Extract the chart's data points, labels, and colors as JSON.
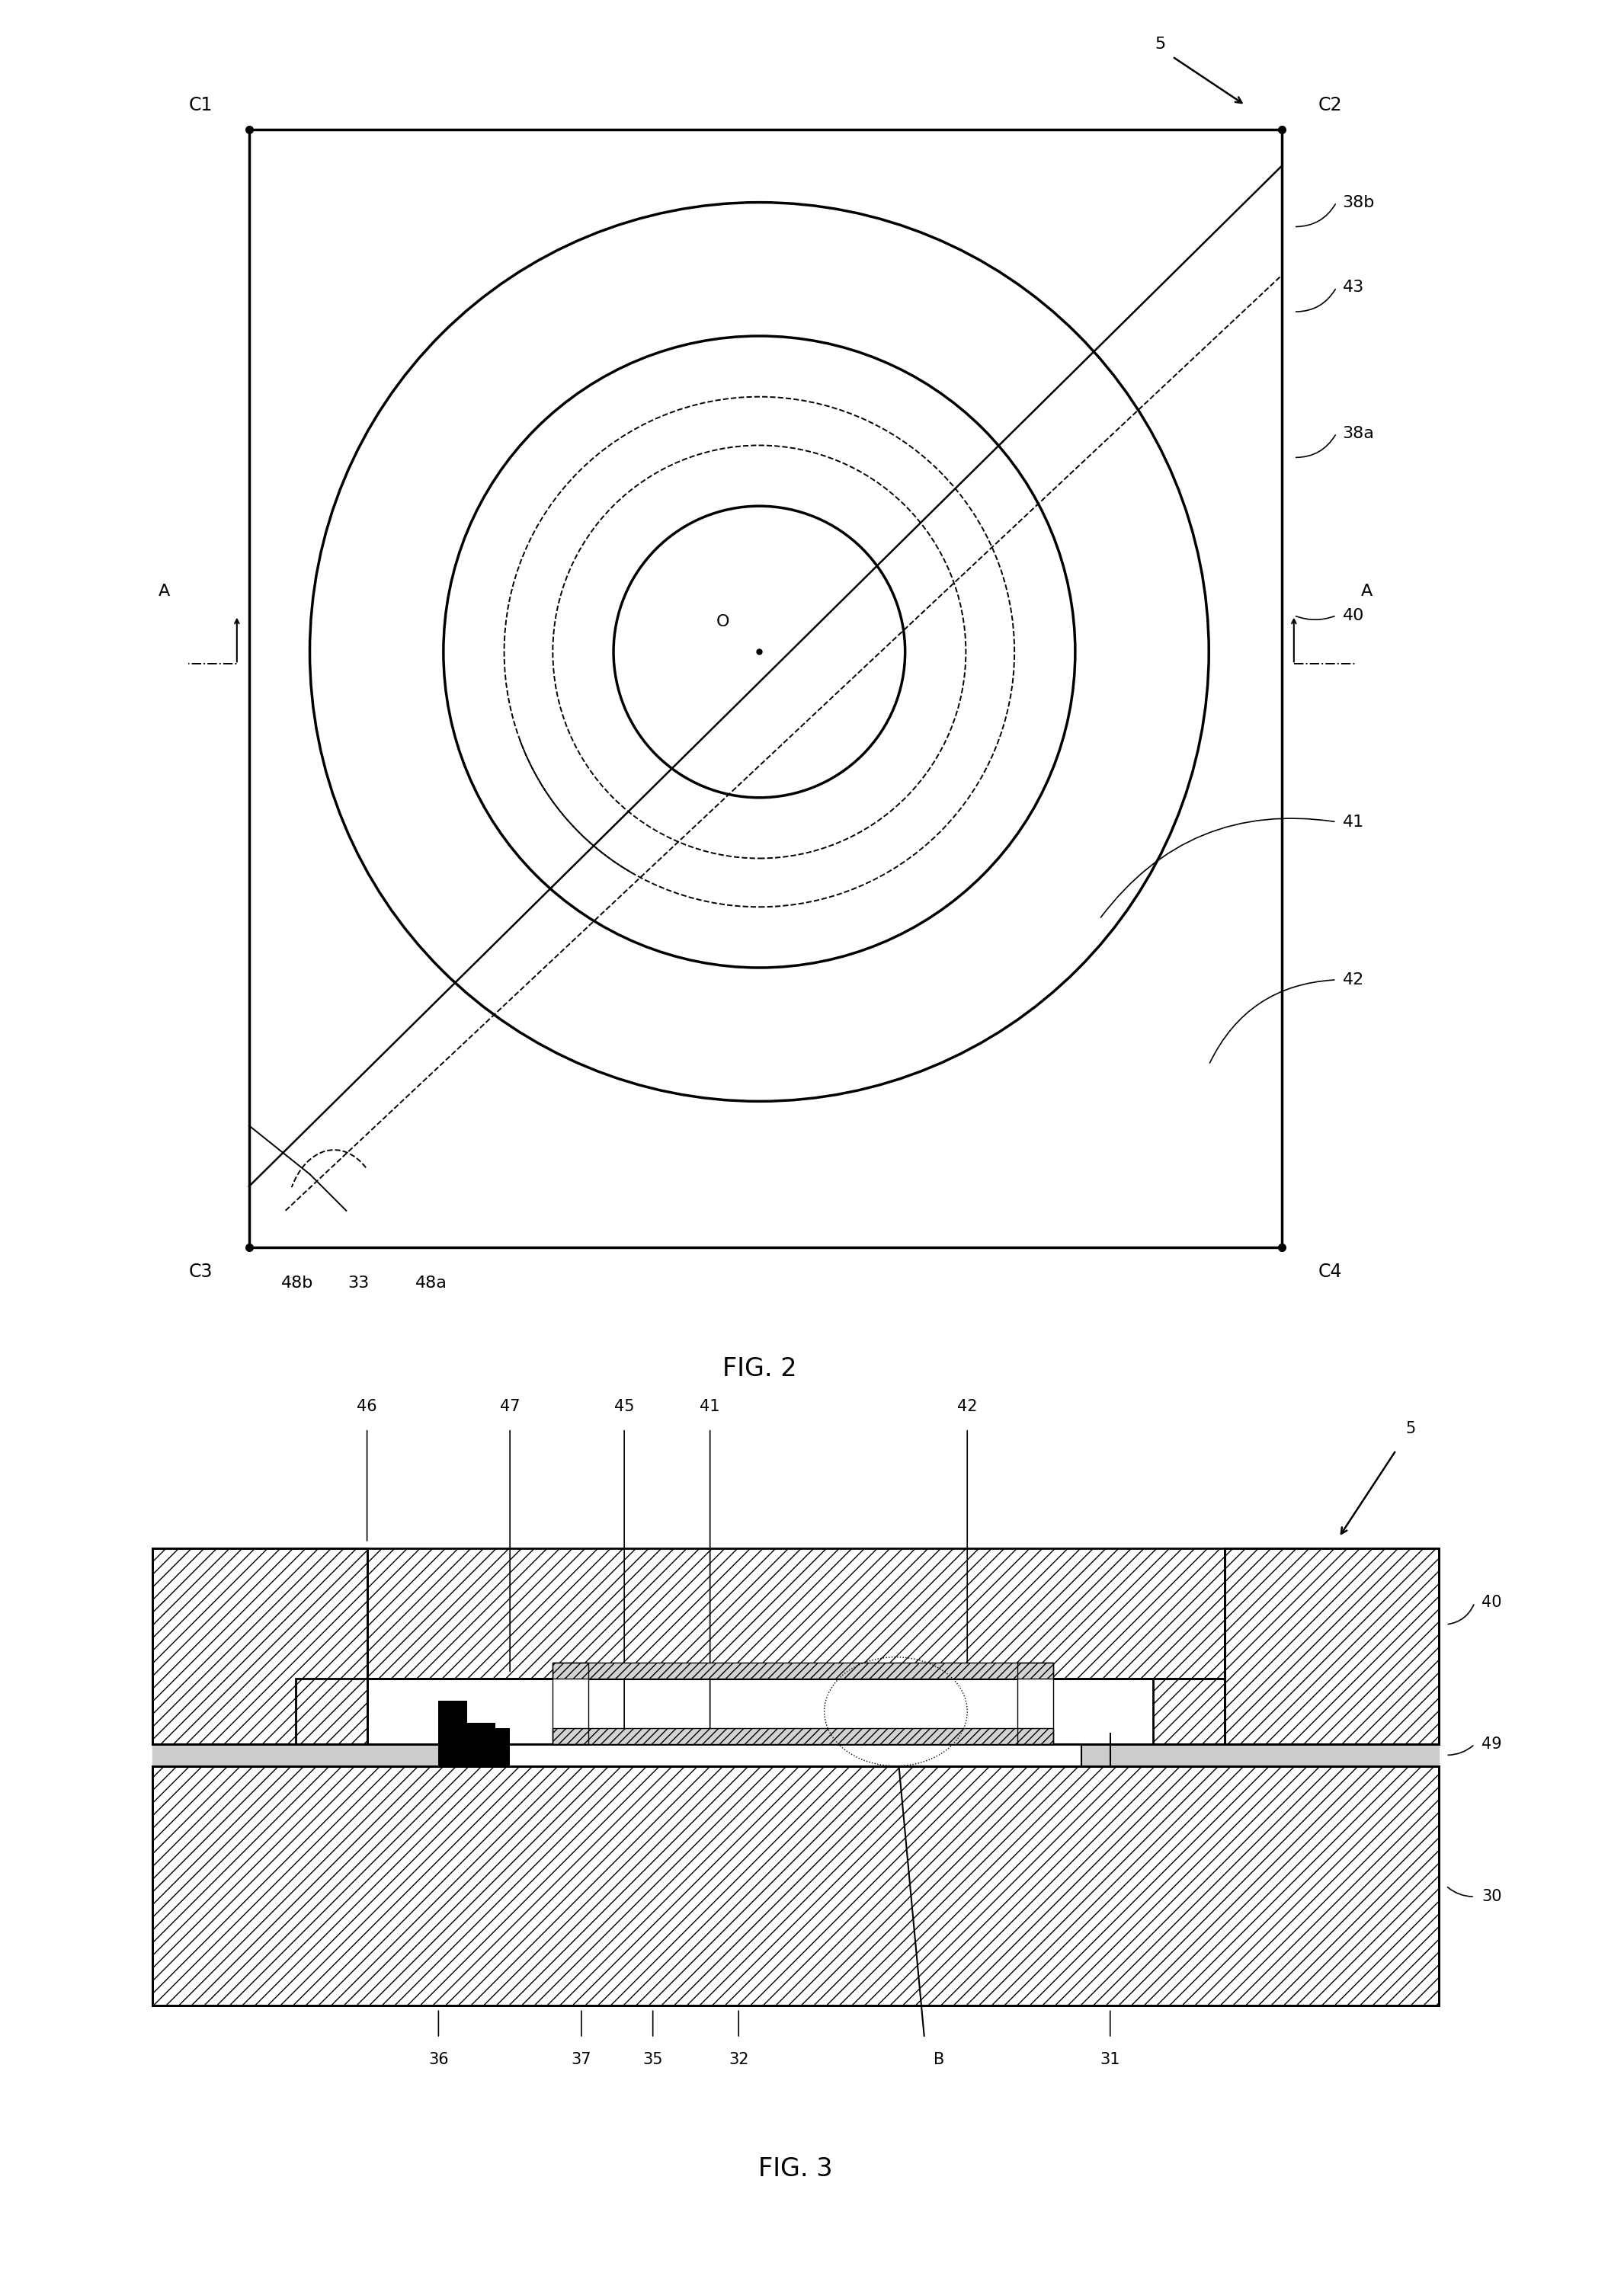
{
  "fig_width": 21.31,
  "fig_height": 30.08,
  "bg_color": "#ffffff",
  "fig2_title": "FIG. 2",
  "fig3_title": "FIG. 3",
  "labels_fig2": {
    "5": "5",
    "C1": "C1",
    "C2": "C2",
    "C3": "C3",
    "C4": "C4",
    "A": "A",
    "38b": "38b",
    "43": "43",
    "38a": "38a",
    "40": "40",
    "41": "41",
    "42": "42",
    "48b": "48b",
    "33": "33",
    "48a": "48a",
    "O": "O"
  },
  "labels_fig3": {
    "5": "5",
    "46": "46",
    "47": "47",
    "45": "45",
    "41": "41",
    "42": "42",
    "40": "40",
    "49": "49",
    "30": "30",
    "36": "36",
    "37": "37",
    "35": "35",
    "32": "32",
    "B": "B",
    "31": "31"
  }
}
